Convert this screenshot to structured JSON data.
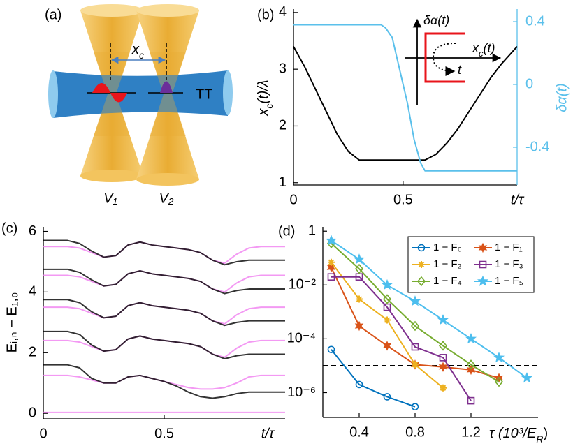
{
  "diagram": {
    "panel_label": "(a)",
    "separation": [
      "x",
      "c"
    ],
    "tube_label": "TT",
    "tweezers": [
      "V₁",
      "V₂"
    ]
  },
  "chart_data": [
    {
      "type": "line",
      "panel_label": "(b)",
      "xlabel": "t/τ",
      "ylabel": [
        "x",
        "c",
        "(t)/λ"
      ],
      "y2label": "δα(t)",
      "xlim": [
        0,
        1.02
      ],
      "ylim": [
        0.96,
        4.06
      ],
      "xticks": [
        0,
        0.5
      ],
      "yticks": [
        1,
        2,
        3,
        4
      ],
      "y2lim": [
        -0.64,
        0.48
      ],
      "y2ticks": [
        -0.4,
        0,
        0.4
      ],
      "inset": {
        "y_label": "δα(t)",
        "x_label": [
          "x",
          "c",
          "(t)"
        ],
        "t_label": "t"
      },
      "series": [
        {
          "color": "#000000",
          "x": [
            0,
            0.05,
            0.1,
            0.15,
            0.2,
            0.25,
            0.3,
            0.6,
            0.65,
            0.7,
            0.75,
            0.8,
            0.85,
            0.9,
            0.95,
            1.02
          ],
          "values": [
            3.4,
            3.05,
            2.65,
            2.25,
            1.85,
            1.55,
            1.4,
            1.4,
            1.5,
            1.7,
            1.95,
            2.25,
            2.55,
            2.85,
            3.1,
            3.4
          ]
        },
        {
          "color": "#5bc0eb",
          "axis": "y2",
          "x": [
            0,
            0.4,
            0.42,
            0.45,
            0.48,
            0.5,
            0.52,
            0.55,
            0.58,
            0.6,
            1.02
          ],
          "values": [
            0.38,
            0.38,
            0.36,
            0.3,
            0.12,
            0,
            -0.12,
            -0.35,
            -0.5,
            -0.55,
            -0.55
          ]
        }
      ]
    },
    {
      "type": "line",
      "panel_label": "(c)",
      "xlabel": "t/τ",
      "ylabel": "Eᵢ,ₙ − E₁,₀",
      "xlim": [
        0,
        1
      ],
      "ylim": [
        -0.18,
        6.15
      ],
      "xticks": [
        0,
        0.5
      ],
      "yticks": [
        0,
        2,
        4,
        6
      ],
      "x": [
        0,
        0.05,
        0.1,
        0.15,
        0.2,
        0.25,
        0.3,
        0.35,
        0.4,
        0.45,
        0.5,
        0.55,
        0.6,
        0.65,
        0.7,
        0.75,
        0.8,
        0.85,
        0.9,
        0.95,
        1
      ],
      "series": [
        {
          "color": "#f080f0",
          "values": [
            5.5,
            5.5,
            5.5,
            5.45,
            5.3,
            5.15,
            5.2,
            5.55,
            5.65,
            5.55,
            5.5,
            5.45,
            5.4,
            5.3,
            5.05,
            4.95,
            5.25,
            5.45,
            5.5,
            5.5,
            5.5
          ]
        },
        {
          "color": "#f080f0",
          "values": [
            4.55,
            4.55,
            4.55,
            4.5,
            4.35,
            4.2,
            4.25,
            4.6,
            4.7,
            4.6,
            4.55,
            4.5,
            4.45,
            4.35,
            4.1,
            4.0,
            4.3,
            4.5,
            4.55,
            4.55,
            4.55
          ]
        },
        {
          "color": "#f080f0",
          "values": [
            3.5,
            3.5,
            3.5,
            3.45,
            3.3,
            3.15,
            3.2,
            3.55,
            3.65,
            3.55,
            3.5,
            3.45,
            3.4,
            3.3,
            3.05,
            2.95,
            3.25,
            3.45,
            3.5,
            3.5,
            3.5
          ]
        },
        {
          "color": "#f080f0",
          "values": [
            2.4,
            2.4,
            2.4,
            2.35,
            2.2,
            2.05,
            2.1,
            2.45,
            2.55,
            2.45,
            2.4,
            2.35,
            2.3,
            2.2,
            1.95,
            1.85,
            2.15,
            2.35,
            2.4,
            2.4,
            2.4
          ]
        },
        {
          "color": "#f080f0",
          "values": [
            1.25,
            1.25,
            1.25,
            1.2,
            1.1,
            1.0,
            1.0,
            1.2,
            1.25,
            1.15,
            1.05,
            0.95,
            0.85,
            0.8,
            0.8,
            0.85,
            1.0,
            1.2,
            1.25,
            1.25,
            1.25
          ]
        },
        {
          "color": "#f080f0",
          "values": [
            0.03,
            0.03,
            0.03,
            0.03,
            0.03,
            0.03,
            0.03,
            0.03,
            0.03,
            0.03,
            0.03,
            0.03,
            0.03,
            0.03,
            0.03,
            0.03,
            0.03,
            0.03,
            0.03,
            0.03,
            0.03
          ]
        },
        {
          "color": "#000000",
          "values": [
            5.7,
            5.7,
            5.7,
            5.6,
            5.35,
            5.15,
            5.2,
            5.55,
            5.65,
            5.55,
            5.5,
            5.45,
            5.4,
            5.3,
            5.05,
            4.9,
            5.0,
            5.05,
            5.05,
            5.05,
            5.05
          ]
        },
        {
          "color": "#000000",
          "values": [
            4.75,
            4.75,
            4.75,
            4.65,
            4.4,
            4.2,
            4.25,
            4.6,
            4.7,
            4.6,
            4.55,
            4.5,
            4.45,
            4.35,
            4.1,
            3.95,
            4.05,
            4.1,
            4.1,
            4.1,
            4.1
          ]
        },
        {
          "color": "#000000",
          "values": [
            3.75,
            3.75,
            3.75,
            3.65,
            3.35,
            3.15,
            3.2,
            3.55,
            3.65,
            3.55,
            3.5,
            3.45,
            3.4,
            3.3,
            3.05,
            2.9,
            3.0,
            3.05,
            3.05,
            3.05,
            3.05
          ]
        },
        {
          "color": "#000000",
          "values": [
            2.7,
            2.7,
            2.7,
            2.6,
            2.25,
            2.05,
            2.1,
            2.45,
            2.55,
            2.45,
            2.4,
            2.35,
            2.3,
            2.2,
            1.95,
            1.8,
            1.9,
            1.95,
            1.95,
            1.95,
            1.95
          ]
        },
        {
          "color": "#000000",
          "values": [
            1.6,
            1.6,
            1.6,
            1.5,
            1.15,
            1.0,
            1.0,
            1.2,
            1.25,
            1.15,
            1.05,
            0.9,
            0.7,
            0.55,
            0.5,
            0.55,
            0.65,
            0.7,
            0.7,
            0.7,
            0.7
          ]
        }
      ]
    },
    {
      "type": "line",
      "panel_label": "(d)",
      "xlabel": [
        "τ (10³/E",
        "R",
        ")"
      ],
      "yscale": "log",
      "xlim": [
        0.14,
        1.68
      ],
      "ylim": [
        1.2e-07,
        1.45
      ],
      "xticks": [
        0.4,
        0.8,
        1.2
      ],
      "yticks": [
        1,
        {
          "value": 0.01,
          "label": "10⁻²"
        },
        {
          "value": 0.0001,
          "label": "10⁻⁴"
        },
        {
          "value": 1e-06,
          "label": "10⁻⁶"
        }
      ],
      "legend": "upper right",
      "hline": 1e-05,
      "series": [
        {
          "name": "1 − F₀",
          "color": "#0072bd",
          "marker": "circle",
          "x": [
            0.2,
            0.4,
            0.6,
            0.8
          ],
          "values": [
            4e-05,
            2e-06,
            7e-07,
            3e-07
          ]
        },
        {
          "name": "1 − F₁",
          "color": "#d95319",
          "marker": "hexagram",
          "x": [
            0.2,
            0.4,
            0.6,
            0.8,
            1.0,
            1.2,
            1.4
          ],
          "values": [
            0.045,
            0.0003,
            5.5e-05,
            1.1e-05,
            9e-06,
            7e-06,
            3.5e-06
          ]
        },
        {
          "name": "1 − F₂",
          "color": "#edb120",
          "marker": "asterisk",
          "x": [
            0.2,
            0.4,
            0.6,
            0.8,
            1.0
          ],
          "values": [
            0.07,
            0.003,
            0.0005,
            1.1e-05,
            1.5e-06
          ]
        },
        {
          "name": "1 − F₃",
          "color": "#7e2f8e",
          "marker": "square",
          "x": [
            0.2,
            0.4,
            0.6,
            0.8,
            1.0,
            1.2
          ],
          "values": [
            0.02,
            0.02,
            0.0015,
            5e-05,
            2e-05,
            5e-07
          ]
        },
        {
          "name": "1 − F₄",
          "color": "#77ac30",
          "marker": "diamond",
          "x": [
            0.2,
            0.4,
            0.6,
            0.8,
            1.0,
            1.2,
            1.4
          ],
          "values": [
            0.35,
            0.04,
            0.003,
            0.0003,
            5.5e-05,
            1.1e-05,
            2.5e-06
          ]
        },
        {
          "name": "1 − F₅",
          "color": "#4dbeee",
          "marker": "pentagram",
          "x": [
            0.2,
            0.4,
            0.6,
            0.8,
            1.0,
            1.2,
            1.4,
            1.6
          ],
          "values": [
            0.45,
            0.09,
            0.01,
            0.0025,
            0.0005,
            0.0001,
            2e-05,
            3.5e-06
          ]
        }
      ]
    }
  ]
}
